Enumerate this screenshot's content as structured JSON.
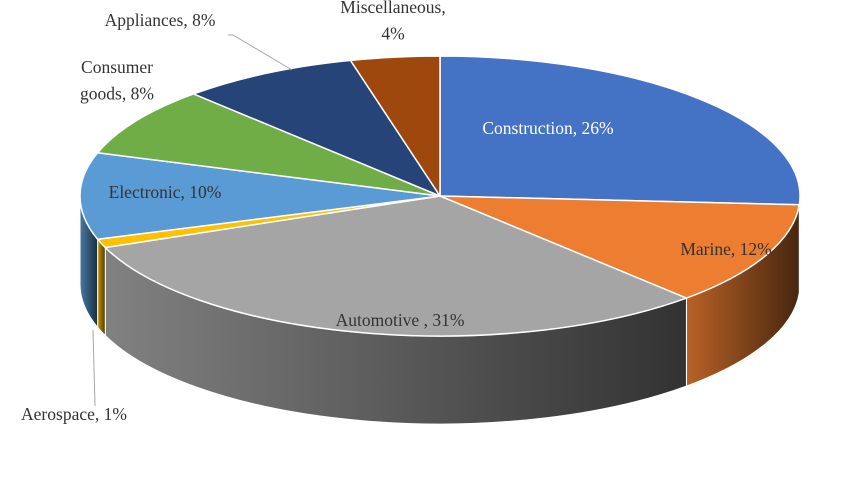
{
  "chart_data": {
    "type": "pie",
    "title": "",
    "legend": "none",
    "style": "3d-tilted",
    "slices": [
      {
        "name": "Construction",
        "value": 26,
        "label": "Construction, 26%",
        "label_lines": [
          "Construction, 26%"
        ],
        "color": "#4472C4",
        "label_color": "#ffffff",
        "exploded": false
      },
      {
        "name": "Marine",
        "value": 12,
        "label": "Marine, 12%",
        "label_lines": [
          "Marine, 12%"
        ],
        "color": "#ED7D31",
        "label_color": "#333333",
        "exploded": false
      },
      {
        "name": "Automotive",
        "value": 31,
        "label": "Automotive , 31%",
        "label_lines": [
          "Automotive , 31%"
        ],
        "color": "#A5A5A5",
        "label_color": "#333333",
        "exploded": false
      },
      {
        "name": "Aerospace",
        "value": 1,
        "label": "Aerospace, 1%",
        "label_lines": [
          "Aerospace, 1%"
        ],
        "color": "#FFC000",
        "label_color": "#333333",
        "exploded": false
      },
      {
        "name": "Electronic",
        "value": 10,
        "label": "Electronic, 10%",
        "label_lines": [
          "Electronic, 10%"
        ],
        "color": "#5B9BD5",
        "label_color": "#333333",
        "exploded": false
      },
      {
        "name": "Consumer goods",
        "value": 8,
        "label": "Consumer goods, 8%",
        "label_lines": [
          "Consumer",
          "goods, 8%"
        ],
        "color": "#70AD47",
        "label_color": "#333333",
        "exploded": false
      },
      {
        "name": "Appliances",
        "value": 8,
        "label": "Appliances, 8%",
        "label_lines": [
          "Appliances, 8%"
        ],
        "color": "#264478",
        "label_color": "#333333",
        "exploded": false
      },
      {
        "name": "Miscellaneous",
        "value": 4,
        "label": "Miscellaneous, 4%",
        "label_lines": [
          "Miscellaneous,",
          "4%"
        ],
        "color": "#9E480E",
        "label_color": "#333333",
        "exploded": false
      }
    ]
  }
}
